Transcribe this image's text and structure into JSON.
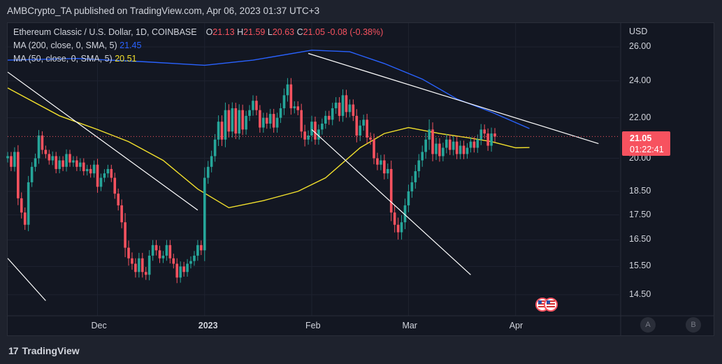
{
  "header": {
    "publish_text": "AMBCrypto_TA published on TradingView.com, Apr 06, 2023 01:37 UTC+3"
  },
  "legend": {
    "symbol": "Ethereum Classic / U.S. Dollar, 1D, COINBASE",
    "o_label": "O",
    "o_value": "21.13",
    "h_label": "H",
    "h_value": "21.59",
    "l_label": "L",
    "l_value": "20.63",
    "c_label": "C",
    "c_value": "21.05",
    "change": "-0.08 (-0.38%)",
    "ma200_label": "MA (200, close, 0, SMA, 5)",
    "ma200_value": "21.45",
    "ma50_label": "MA (50, close, 0, SMA, 5)",
    "ma50_value": "20.51"
  },
  "price_scale": {
    "currency": "USD",
    "last_price": "21.05",
    "countdown": "01:22:41"
  },
  "time_scale": {
    "auto_button": "A",
    "b_button": "B"
  },
  "footer": {
    "brand": "TradingView",
    "logo_glyph": "17"
  },
  "colors": {
    "up": "#26a69a",
    "down": "#f7525f",
    "ma200": "#2962ff",
    "ma50": "#f2e02c",
    "trendline": "#ffffff",
    "background": "#131722"
  },
  "chart_data": {
    "type": "candlestick",
    "title": "Ethereum Classic / U.S. Dollar, 1D, COINBASE",
    "scale": "log",
    "ylim": [
      13.8,
      27.5
    ],
    "x_start": "2022-11-05",
    "x_end": "2023-05-01",
    "y_ticks": [
      "26.00",
      "24.00",
      "22.00",
      "20.00",
      "18.50",
      "17.50",
      "16.50",
      "15.50",
      "14.50"
    ],
    "x_ticks": [
      {
        "label": "Dec",
        "date": "2022-12-01",
        "bold": false
      },
      {
        "label": "2023",
        "date": "2023-01-01",
        "bold": true
      },
      {
        "label": "Feb",
        "date": "2023-02-01",
        "bold": false
      },
      {
        "label": "Mar",
        "date": "2023-03-01",
        "bold": false
      },
      {
        "label": "Apr",
        "date": "2023-04-01",
        "bold": false
      }
    ],
    "series": [
      {
        "name": "Ethereum Classic / U.S. Dollar",
        "start_date": "2022-11-05",
        "closes": [
          20.1,
          19.6,
          20.3,
          18.2,
          17.6,
          17.1,
          18.9,
          19.6,
          20.0,
          21.1,
          20.4,
          20.2,
          19.9,
          20.1,
          19.5,
          19.9,
          19.6,
          20.2,
          19.8,
          19.9,
          19.6,
          19.8,
          19.4,
          19.5,
          19.3,
          19.7,
          18.7,
          19.1,
          19.3,
          19.5,
          19.1,
          18.4,
          17.9,
          17.2,
          16.2,
          15.8,
          15.6,
          15.3,
          15.8,
          15.3,
          15.2,
          15.9,
          16.3,
          16.1,
          15.8,
          15.9,
          16.3,
          15.8,
          15.6,
          15.1,
          15.5,
          15.3,
          15.6,
          15.7,
          15.9,
          16.3,
          16.1,
          19.1,
          19.6,
          20.1,
          20.9,
          21.8,
          20.9,
          22.4,
          21.3,
          22.5,
          21.2,
          22.4,
          21.4,
          22.1,
          22.4,
          22.9,
          22.4,
          21.5,
          22.0,
          21.7,
          22.2,
          21.5,
          22.0,
          22.5,
          23.2,
          23.8,
          22.5,
          22.6,
          22.4,
          21.3,
          20.9,
          21.1,
          21.8,
          20.9,
          21.4,
          21.7,
          22.1,
          21.9,
          22.5,
          22.8,
          22.1,
          23.2,
          22.3,
          22.7,
          22.1,
          21.1,
          21.6,
          21.9,
          21.0,
          20.9,
          20.0,
          19.7,
          19.9,
          19.3,
          19.5,
          17.6,
          17.1,
          16.8,
          17.2,
          17.9,
          18.5,
          18.9,
          19.4,
          19.9,
          20.3,
          20.9,
          21.4,
          20.2,
          20.7,
          20.1,
          20.5,
          20.9,
          20.4,
          20.8,
          20.2,
          20.6,
          20.2,
          20.5,
          20.8,
          20.5,
          20.9,
          21.4,
          21.2,
          20.6,
          21.2,
          21.05
        ],
        "wick_pct": [
          1.0,
          1.0,
          1.1,
          1.6,
          1.4,
          1.2,
          1.5,
          1.1,
          1.1,
          1.3,
          1.0,
          1.0,
          1.0,
          1.1,
          1.0,
          1.0,
          1.0,
          1.1,
          1.0,
          1.0,
          1.0,
          1.0,
          1.0,
          1.0,
          1.0,
          1.0,
          1.4,
          1.0,
          1.0,
          1.0,
          1.0,
          1.2,
          1.2,
          1.4,
          2.2,
          1.7,
          1.4,
          1.3,
          1.3,
          1.3,
          1.2,
          1.3,
          1.2,
          1.2,
          1.1,
          1.1,
          1.2,
          1.2,
          1.1,
          1.3,
          1.2,
          1.1,
          1.1,
          1.1,
          1.1,
          1.2,
          1.1,
          2.5,
          1.4,
          1.3,
          1.3,
          1.5,
          1.5,
          1.8,
          1.4,
          1.4,
          1.3,
          1.4,
          1.3,
          1.2,
          1.2,
          1.3,
          1.2,
          1.2,
          1.2,
          1.2,
          1.2,
          1.2,
          1.2,
          1.2,
          1.6,
          1.5,
          1.5,
          1.2,
          1.2,
          1.5,
          1.6,
          1.2,
          1.4,
          1.2,
          1.2,
          1.2,
          1.2,
          1.2,
          1.3,
          1.3,
          1.3,
          1.4,
          1.3,
          1.2,
          1.2,
          1.6,
          1.3,
          1.2,
          1.4,
          1.2,
          1.4,
          1.3,
          1.3,
          1.4,
          1.3,
          2.0,
          1.8,
          1.7,
          1.7,
          1.6,
          1.6,
          1.5,
          1.5,
          1.5,
          1.5,
          1.6,
          2.4,
          1.7,
          1.4,
          1.3,
          1.2,
          1.3,
          1.2,
          1.3,
          1.2,
          1.2,
          1.2,
          1.1,
          1.1,
          1.1,
          1.2,
          1.3,
          1.2,
          1.2,
          1.4,
          1.3
        ]
      }
    ],
    "ma200": {
      "name": "MA (200, close, 0, SMA, 5)",
      "points": [
        [
          "2022-11-05",
          25.2
        ],
        [
          "2022-11-25",
          25.3
        ],
        [
          "2022-12-15",
          25.1
        ],
        [
          "2023-01-01",
          24.9
        ],
        [
          "2023-01-15",
          25.2
        ],
        [
          "2023-02-01",
          25.8
        ],
        [
          "2023-02-12",
          25.7
        ],
        [
          "2023-02-22",
          25.0
        ],
        [
          "2023-03-05",
          24.1
        ],
        [
          "2023-03-15",
          23.0
        ],
        [
          "2023-03-25",
          22.3
        ],
        [
          "2023-04-05",
          21.45
        ]
      ]
    },
    "ma50": {
      "name": "MA (50, close, 0, SMA, 5)",
      "points": [
        [
          "2022-11-05",
          23.6
        ],
        [
          "2022-11-20",
          22.1
        ],
        [
          "2022-12-01",
          21.4
        ],
        [
          "2022-12-10",
          20.8
        ],
        [
          "2022-12-20",
          19.9
        ],
        [
          "2022-12-30",
          18.6
        ],
        [
          "2023-01-08",
          17.8
        ],
        [
          "2023-01-18",
          18.1
        ],
        [
          "2023-01-28",
          18.5
        ],
        [
          "2023-02-05",
          19.1
        ],
        [
          "2023-02-15",
          20.5
        ],
        [
          "2023-02-22",
          21.2
        ],
        [
          "2023-03-01",
          21.5
        ],
        [
          "2023-03-10",
          21.2
        ],
        [
          "2023-03-18",
          21.0
        ],
        [
          "2023-03-25",
          20.8
        ],
        [
          "2023-04-01",
          20.5
        ],
        [
          "2023-04-05",
          20.51
        ]
      ]
    },
    "trendlines": [
      {
        "from": [
          "2022-11-05",
          24.5
        ],
        "to": [
          "2022-12-30",
          17.7
        ]
      },
      {
        "from": [
          "2022-11-05",
          15.8
        ],
        "to": [
          "2022-11-16",
          14.3
        ]
      },
      {
        "from": [
          "2023-02-01",
          21.4
        ],
        "to": [
          "2023-03-19",
          15.2
        ]
      },
      {
        "from": [
          "2023-01-31",
          25.6
        ],
        "to": [
          "2023-04-25",
          20.7
        ]
      }
    ]
  }
}
